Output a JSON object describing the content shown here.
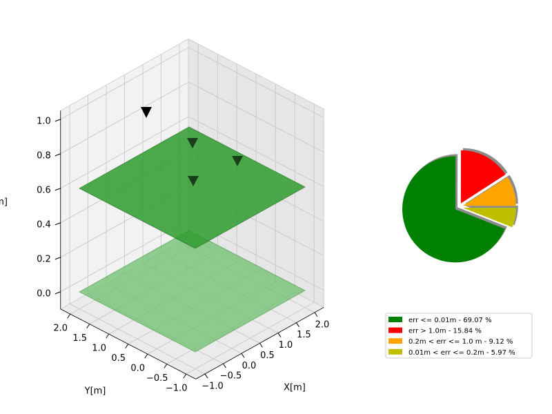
{
  "chart_data": [
    {
      "type": "scatter3d",
      "xlabel": "X[m]",
      "ylabel": "Y[m]",
      "zlabel": "Z[m]",
      "xlim": [
        -1.25,
        2.25
      ],
      "ylim": [
        -1.25,
        2.25
      ],
      "zlim": [
        -0.1,
        1.05
      ],
      "xticks": [
        {
          "value": -1,
          "label": "−1.0"
        },
        {
          "value": -0.5,
          "label": "−0.5"
        },
        {
          "value": 0,
          "label": "0.0"
        },
        {
          "value": 0.5,
          "label": "0.5"
        },
        {
          "value": 1,
          "label": "1.0"
        },
        {
          "value": 1.5,
          "label": "1.5"
        },
        {
          "value": 2,
          "label": "2.0"
        }
      ],
      "yticks": [
        {
          "value": -1,
          "label": "−1.0"
        },
        {
          "value": -0.5,
          "label": "−0.5"
        },
        {
          "value": 0,
          "label": "0.0"
        },
        {
          "value": 0.5,
          "label": "0.5"
        },
        {
          "value": 1,
          "label": "1.0"
        },
        {
          "value": 1.5,
          "label": "1.5"
        },
        {
          "value": 2,
          "label": "2.0"
        }
      ],
      "zticks": [
        {
          "value": 0,
          "label": "0.0"
        },
        {
          "value": 0.2,
          "label": "0.2"
        },
        {
          "value": 0.4,
          "label": "0.4"
        },
        {
          "value": 0.6,
          "label": "0.6"
        },
        {
          "value": 0.8,
          "label": "0.8"
        },
        {
          "value": 1,
          "label": "1.0"
        }
      ],
      "grid": true
    },
    {
      "type": "pie",
      "labels": [
        "err <= 0.01m - 69.07 %",
        "err > 1.0m - 15.84 %",
        "0.2m < err <= 1.0 m - 9.12 %",
        "0.01m < err <= 0.2m - 5.97 %"
      ],
      "values": [
        69.07,
        15.84,
        9.12,
        5.97
      ],
      "colors": [
        "#008000",
        "#ff0000",
        "#ffa500",
        "#bfbf00"
      ],
      "legend": "lower right",
      "shadow": true
    }
  ]
}
